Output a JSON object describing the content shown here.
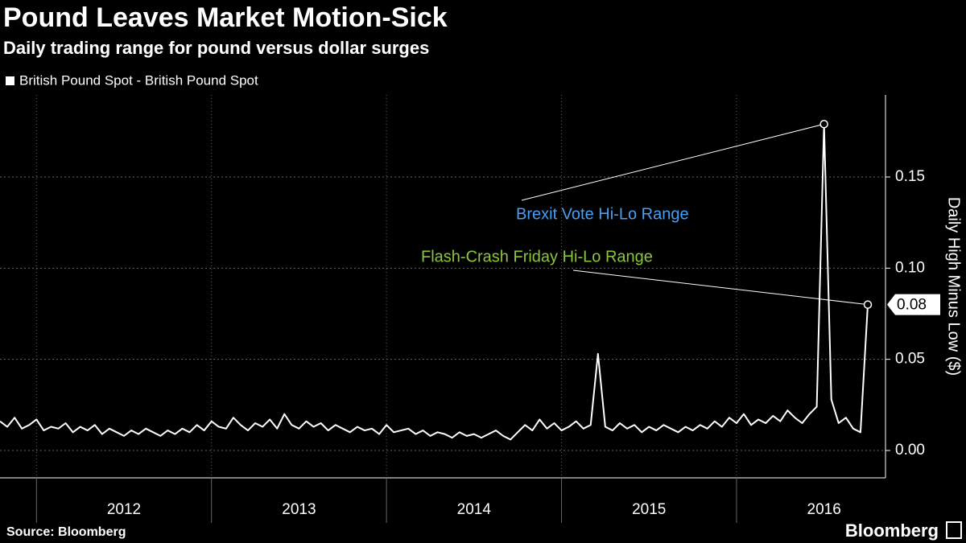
{
  "chart_data": {
    "type": "line",
    "title": "Pound Leaves Market Motion-Sick",
    "subtitle": "Daily trading range for pound versus dollar surges",
    "y_label": "Daily High Minus Low ($)",
    "categories": [
      null,
      null,
      null,
      null,
      null,
      null,
      null,
      null,
      null,
      null,
      null,
      null,
      null,
      null,
      null,
      null,
      null,
      "2012",
      null,
      null,
      null,
      null,
      null,
      null,
      null,
      null,
      null,
      null,
      null,
      null,
      null,
      null,
      null,
      null,
      null,
      null,
      null,
      null,
      null,
      null,
      null,
      "2013",
      null,
      null,
      null,
      null,
      null,
      null,
      null,
      null,
      null,
      null,
      null,
      null,
      null,
      null,
      null,
      null,
      null,
      null,
      null,
      null,
      null,
      null,
      null,
      "2014",
      null,
      null,
      null,
      null,
      null,
      null,
      null,
      null,
      null,
      null,
      null,
      null,
      null,
      null,
      null,
      null,
      null,
      null,
      null,
      null,
      null,
      null,
      null,
      "2015",
      null,
      null,
      null,
      null,
      null,
      null,
      null,
      null,
      null,
      null,
      null,
      null,
      null,
      null,
      null,
      null,
      null,
      null,
      null,
      null,
      null,
      null,
      null,
      "2016",
      null,
      null,
      null,
      null,
      null,
      null
    ],
    "series": [
      {
        "name": "British Pound Spot - British Pound Spot",
        "color": "#ffffff",
        "values": [
          0.016,
          0.013,
          0.018,
          0.012,
          0.014,
          0.017,
          0.011,
          0.013,
          0.012,
          0.015,
          0.01,
          0.013,
          0.011,
          0.014,
          0.009,
          0.012,
          0.01,
          0.008,
          0.011,
          0.009,
          0.012,
          0.01,
          0.008,
          0.011,
          0.009,
          0.012,
          0.01,
          0.014,
          0.011,
          0.016,
          0.013,
          0.012,
          0.018,
          0.014,
          0.011,
          0.015,
          0.013,
          0.017,
          0.012,
          0.02,
          0.014,
          0.012,
          0.016,
          0.013,
          0.015,
          0.011,
          0.014,
          0.012,
          0.01,
          0.013,
          0.011,
          0.012,
          0.009,
          0.014,
          0.01,
          0.011,
          0.012,
          0.009,
          0.011,
          0.008,
          0.01,
          0.009,
          0.007,
          0.01,
          0.008,
          0.009,
          0.007,
          0.009,
          0.011,
          0.008,
          0.006,
          0.01,
          0.014,
          0.011,
          0.017,
          0.012,
          0.015,
          0.011,
          0.013,
          0.016,
          0.012,
          0.014,
          0.053,
          0.013,
          0.011,
          0.015,
          0.012,
          0.014,
          0.01,
          0.013,
          0.011,
          0.014,
          0.012,
          0.01,
          0.013,
          0.011,
          0.014,
          0.012,
          0.016,
          0.013,
          0.018,
          0.015,
          0.02,
          0.014,
          0.017,
          0.015,
          0.019,
          0.016,
          0.022,
          0.018,
          0.015,
          0.02,
          0.024,
          0.179,
          0.028,
          0.015,
          0.018,
          0.012,
          0.01,
          0.08
        ]
      }
    ],
    "ylim": [
      -0.015,
      0.195
    ],
    "yticks": [
      {
        "value": 0,
        "label": "0.00"
      },
      0.05,
      {
        "value": 0.1,
        "label": "0.10"
      },
      0.15
    ],
    "grid": true,
    "last_value_label": "0.08",
    "annotations": [
      {
        "text": "Brexit Vote Hi-Lo Range",
        "color": "#4a9ff5"
      },
      {
        "text": "Flash-Crash Friday Hi-Lo Range",
        "color": "#8cc63f"
      }
    ]
  },
  "footer": {
    "source": "Source: Bloomberg",
    "brand": "Bloomberg"
  }
}
